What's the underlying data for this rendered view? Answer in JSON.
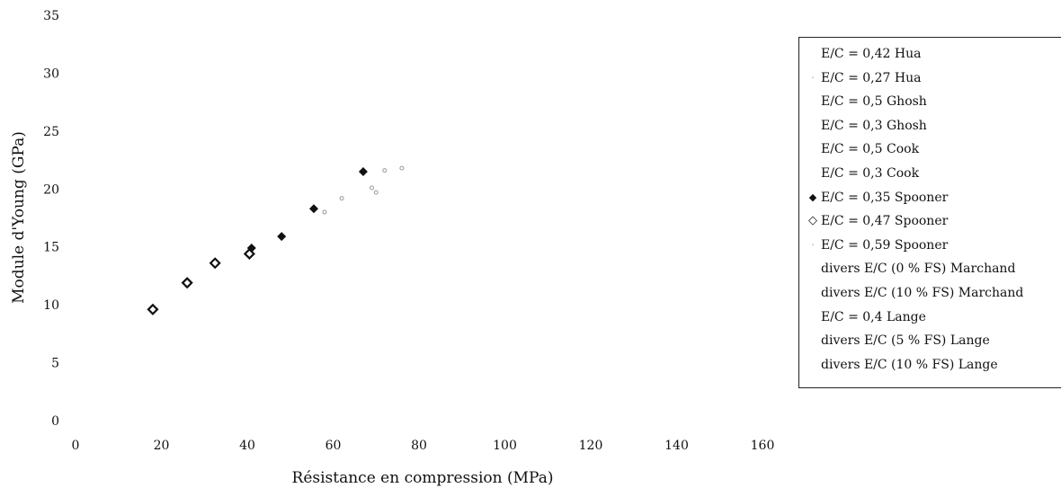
{
  "chart_data": {
    "type": "scatter",
    "title": "",
    "xlabel": "Résistance en compression (MPa)",
    "ylabel": "Module d'Young (GPa)",
    "xlim": [
      0,
      160
    ],
    "ylim": [
      0,
      35
    ],
    "x_ticks": [
      "0",
      "20",
      "40",
      "60",
      "80",
      "100",
      "120",
      "140",
      "160"
    ],
    "y_ticks": [
      "0",
      "5",
      "10",
      "15",
      "20",
      "25",
      "30",
      "35"
    ],
    "grid": false,
    "legend_position": "right",
    "series": [
      {
        "name": "E/C = 0,42 Hua",
        "marker": "none",
        "color": "#999999",
        "x": [],
        "y": []
      },
      {
        "name": "E/C = 0,27 Hua",
        "marker": "faint",
        "color": "#999999",
        "x": [],
        "y": []
      },
      {
        "name": "E/C = 0,5 Ghosh",
        "marker": "none",
        "color": "#999999",
        "x": [],
        "y": []
      },
      {
        "name": "E/C = 0,3 Ghosh",
        "marker": "none",
        "color": "#999999",
        "x": [],
        "y": []
      },
      {
        "name": "E/C = 0,5 Cook",
        "marker": "none",
        "color": "#999999",
        "x": [],
        "y": []
      },
      {
        "name": "E/C = 0,3 Cook",
        "marker": "none",
        "color": "#999999",
        "x": [],
        "y": []
      },
      {
        "name": "E/C = 0,35 Spooner",
        "marker": "filled-diamond",
        "color": "#111111",
        "x": [
          41,
          48,
          55.5,
          67
        ],
        "y": [
          14.9,
          15.9,
          18.3,
          21.5
        ]
      },
      {
        "name": "E/C = 0,47 Spooner",
        "marker": "open-diamond",
        "color": "#111111",
        "x": [
          18,
          26,
          32.5,
          40.5
        ],
        "y": [
          9.6,
          11.9,
          13.6,
          14.4
        ]
      },
      {
        "name": "E/C = 0,59 Spooner",
        "marker": "faint",
        "color": "#999999",
        "x": [
          58,
          62,
          69,
          70,
          72,
          76
        ],
        "y": [
          18.0,
          19.2,
          20.1,
          19.7,
          21.6,
          21.8
        ]
      },
      {
        "name": "divers E/C (0 % FS) Marchand",
        "marker": "none",
        "color": "#999999",
        "x": [],
        "y": []
      },
      {
        "name": "divers E/C (10 % FS) Marchand",
        "marker": "none",
        "color": "#999999",
        "x": [],
        "y": []
      },
      {
        "name": "E/C = 0,4 Lange",
        "marker": "none",
        "color": "#999999",
        "x": [],
        "y": []
      },
      {
        "name": "divers E/C (5 % FS) Lange",
        "marker": "none",
        "color": "#999999",
        "x": [],
        "y": []
      },
      {
        "name": "divers E/C (10 % FS) Lange",
        "marker": "none",
        "color": "#999999",
        "x": [],
        "y": []
      }
    ]
  }
}
